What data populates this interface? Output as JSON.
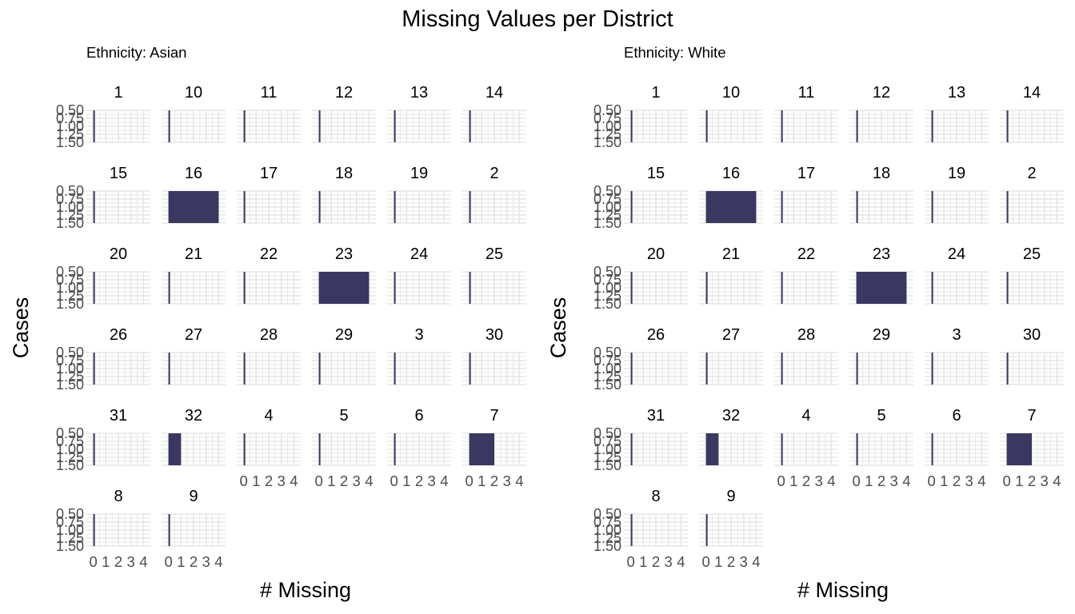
{
  "chart_data": {
    "type": "bar",
    "title": "Missing Values per District",
    "xlabel": "# Missing",
    "ylabel": "Cases",
    "bar_color": "#3a3761",
    "grid": true,
    "xlim": [
      0,
      4
    ],
    "x_ticks": [
      "0",
      "1",
      "2",
      "3",
      "4"
    ],
    "y_ticks": [
      "0.50",
      "0.75",
      "1.00",
      "1.25",
      "1.50"
    ],
    "ylim": [
      0.5,
      1.5
    ],
    "districts": [
      "1",
      "10",
      "11",
      "12",
      "13",
      "14",
      "15",
      "16",
      "17",
      "18",
      "19",
      "2",
      "20",
      "21",
      "22",
      "23",
      "24",
      "25",
      "26",
      "27",
      "28",
      "29",
      "3",
      "30",
      "31",
      "32",
      "4",
      "5",
      "6",
      "7",
      "8",
      "9"
    ],
    "panels": [
      {
        "title": "Ethnicity: Asian",
        "facets": [
          {
            "district": "1",
            "missing": 0,
            "cases": 1
          },
          {
            "district": "10",
            "missing": 0,
            "cases": 1
          },
          {
            "district": "11",
            "missing": 0,
            "cases": 1
          },
          {
            "district": "12",
            "missing": 0,
            "cases": 1
          },
          {
            "district": "13",
            "missing": 0,
            "cases": 1
          },
          {
            "district": "14",
            "missing": 0,
            "cases": 1
          },
          {
            "district": "15",
            "missing": 0,
            "cases": 1
          },
          {
            "district": "16",
            "missing": 4,
            "cases": 1
          },
          {
            "district": "17",
            "missing": 0,
            "cases": 1
          },
          {
            "district": "18",
            "missing": 0,
            "cases": 1
          },
          {
            "district": "19",
            "missing": 0,
            "cases": 1
          },
          {
            "district": "2",
            "missing": 0,
            "cases": 1
          },
          {
            "district": "20",
            "missing": 0,
            "cases": 1
          },
          {
            "district": "21",
            "missing": 0,
            "cases": 1
          },
          {
            "district": "22",
            "missing": 0,
            "cases": 1
          },
          {
            "district": "23",
            "missing": 4,
            "cases": 1
          },
          {
            "district": "24",
            "missing": 0,
            "cases": 1
          },
          {
            "district": "25",
            "missing": 0,
            "cases": 1
          },
          {
            "district": "26",
            "missing": 0,
            "cases": 1
          },
          {
            "district": "27",
            "missing": 0,
            "cases": 1
          },
          {
            "district": "28",
            "missing": 0,
            "cases": 1
          },
          {
            "district": "29",
            "missing": 0,
            "cases": 1
          },
          {
            "district": "3",
            "missing": 0,
            "cases": 1
          },
          {
            "district": "30",
            "missing": 0,
            "cases": 1
          },
          {
            "district": "31",
            "missing": 0,
            "cases": 1
          },
          {
            "district": "32",
            "missing": 1,
            "cases": 1
          },
          {
            "district": "4",
            "missing": 0,
            "cases": 1
          },
          {
            "district": "5",
            "missing": 0,
            "cases": 1
          },
          {
            "district": "6",
            "missing": 0,
            "cases": 1
          },
          {
            "district": "7",
            "missing": 2,
            "cases": 1
          },
          {
            "district": "8",
            "missing": 0,
            "cases": 1
          },
          {
            "district": "9",
            "missing": 0,
            "cases": 1
          }
        ]
      },
      {
        "title": "Ethnicity: White",
        "facets": [
          {
            "district": "1",
            "missing": 0,
            "cases": 1
          },
          {
            "district": "10",
            "missing": 0,
            "cases": 1
          },
          {
            "district": "11",
            "missing": 0,
            "cases": 1
          },
          {
            "district": "12",
            "missing": 0,
            "cases": 1
          },
          {
            "district": "13",
            "missing": 0,
            "cases": 1
          },
          {
            "district": "14",
            "missing": 0,
            "cases": 1
          },
          {
            "district": "15",
            "missing": 0,
            "cases": 1
          },
          {
            "district": "16",
            "missing": 4,
            "cases": 1
          },
          {
            "district": "17",
            "missing": 0,
            "cases": 1
          },
          {
            "district": "18",
            "missing": 0,
            "cases": 1
          },
          {
            "district": "19",
            "missing": 0,
            "cases": 1
          },
          {
            "district": "2",
            "missing": 0,
            "cases": 1
          },
          {
            "district": "20",
            "missing": 0,
            "cases": 1
          },
          {
            "district": "21",
            "missing": 0,
            "cases": 1
          },
          {
            "district": "22",
            "missing": 0,
            "cases": 1
          },
          {
            "district": "23",
            "missing": 4,
            "cases": 1
          },
          {
            "district": "24",
            "missing": 0,
            "cases": 1
          },
          {
            "district": "25",
            "missing": 0,
            "cases": 1
          },
          {
            "district": "26",
            "missing": 0,
            "cases": 1
          },
          {
            "district": "27",
            "missing": 0,
            "cases": 1
          },
          {
            "district": "28",
            "missing": 0,
            "cases": 1
          },
          {
            "district": "29",
            "missing": 0,
            "cases": 1
          },
          {
            "district": "3",
            "missing": 0,
            "cases": 1
          },
          {
            "district": "30",
            "missing": 0,
            "cases": 1
          },
          {
            "district": "31",
            "missing": 0,
            "cases": 1
          },
          {
            "district": "32",
            "missing": 1,
            "cases": 1
          },
          {
            "district": "4",
            "missing": 0,
            "cases": 1
          },
          {
            "district": "5",
            "missing": 0,
            "cases": 1
          },
          {
            "district": "6",
            "missing": 0,
            "cases": 1
          },
          {
            "district": "7",
            "missing": 2,
            "cases": 1
          },
          {
            "district": "8",
            "missing": 0,
            "cases": 1
          },
          {
            "district": "9",
            "missing": 0,
            "cases": 1
          }
        ]
      }
    ]
  }
}
